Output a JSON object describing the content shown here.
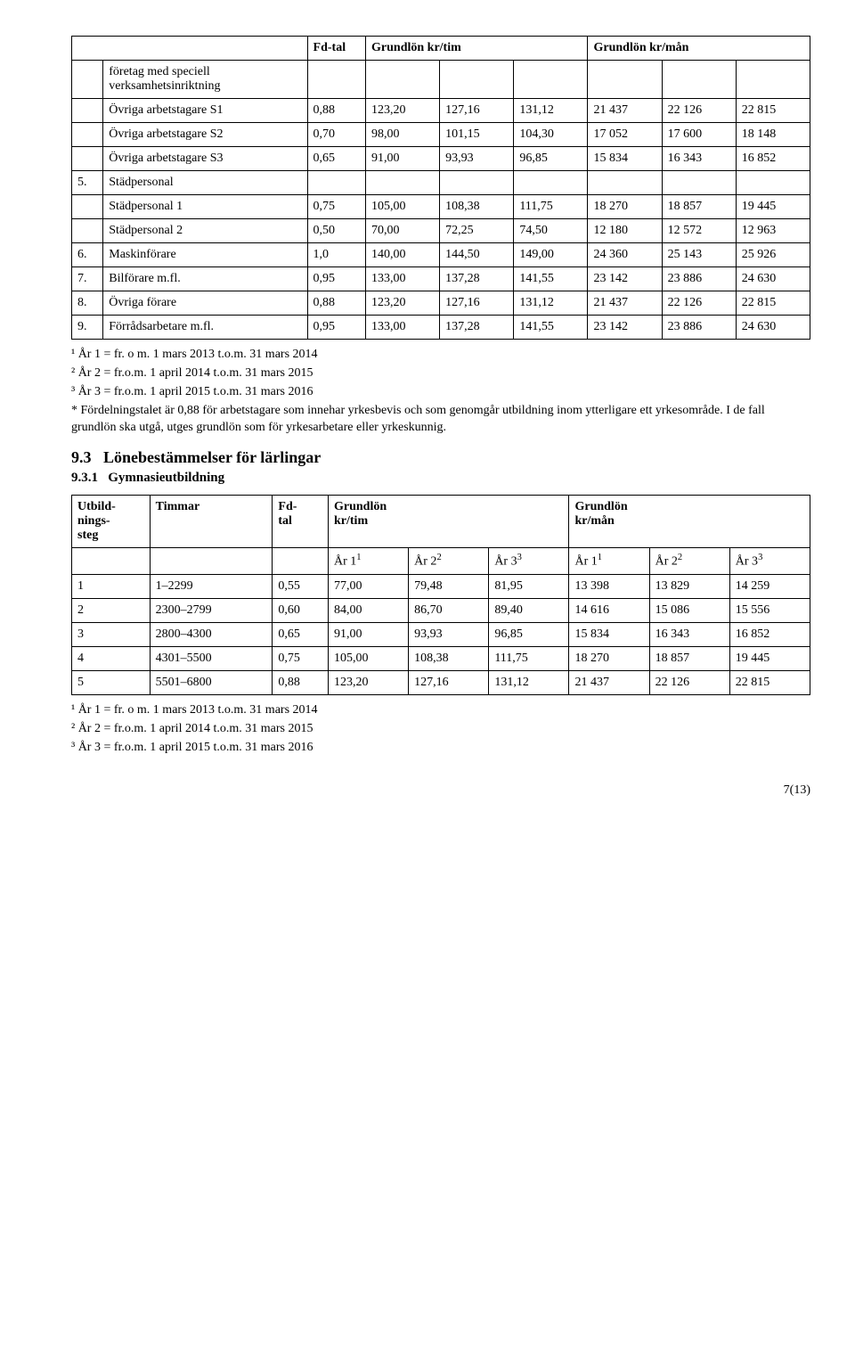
{
  "table1": {
    "headers": {
      "col2": "Fd-tal",
      "col3": "Grundlön kr/tim",
      "col6": "Grundlön kr/mån"
    },
    "groupA": {
      "label": "företag med speciell verksamhetsinriktning",
      "rows": [
        {
          "label": "Övriga arbetstagare S1",
          "c": [
            "0,88",
            "123,20",
            "127,16",
            "131,12",
            "21 437",
            "22 126",
            "22 815"
          ]
        },
        {
          "label": "Övriga arbetstagare S2",
          "c": [
            "0,70",
            "98,00",
            "101,15",
            "104,30",
            "17 052",
            "17 600",
            "18 148"
          ]
        },
        {
          "label": "Övriga arbetstagare S3",
          "c": [
            "0,65",
            "91,00",
            "93,93",
            "96,85",
            "15 834",
            "16 343",
            "16 852"
          ]
        }
      ]
    },
    "group5": {
      "num": "5.",
      "label": "Städpersonal",
      "rows": [
        {
          "label": "Städpersonal 1",
          "c": [
            "0,75",
            "105,00",
            "108,38",
            "111,75",
            "18 270",
            "18 857",
            "19 445"
          ]
        },
        {
          "label": "Städpersonal 2",
          "c": [
            "0,50",
            "70,00",
            "72,25",
            "74,50",
            "12 180",
            "12 572",
            "12 963"
          ]
        }
      ]
    },
    "flat": [
      {
        "num": "6.",
        "label": "Maskinförare",
        "c": [
          "1,0",
          "140,00",
          "144,50",
          "149,00",
          "24 360",
          "25 143",
          "25 926"
        ]
      },
      {
        "num": "7.",
        "label": "Bilförare m.fl.",
        "c": [
          "0,95",
          "133,00",
          "137,28",
          "141,55",
          "23 142",
          "23 886",
          "24 630"
        ]
      },
      {
        "num": "8.",
        "label": "Övriga förare",
        "c": [
          "0,88",
          "123,20",
          "127,16",
          "131,12",
          "21 437",
          "22 126",
          "22 815"
        ]
      },
      {
        "num": "9.",
        "label": "Förrådsarbetare m.fl.",
        "c": [
          "0,95",
          "133,00",
          "137,28",
          "141,55",
          "23 142",
          "23 886",
          "24 630"
        ]
      }
    ]
  },
  "footnotes1": {
    "l1_pre": "¹ År 1 = fr. o m. 1 mars 2013 t.o.m. 31 mars 2014",
    "l2": "² År 2 = fr.o.m. 1 april 2014 t.o.m. 31 mars 2015",
    "l3": "³ År 3 = fr.o.m. 1 april 2015 t.o.m. 31 mars 2016",
    "star": "* Fördelningstalet är 0,88 för arbetstagare som innehar yrkesbevis och som genomgår utbildning inom ytterligare ett yrkesområde. I de fall grundlön ska utgå, utges grundlön som för yrkesarbetare eller yrkeskunnig."
  },
  "sec93": {
    "num": "9.3",
    "title": "Lönebestämmelser för lärlingar"
  },
  "sec931": {
    "num": "9.3.1",
    "title": "Gymnasieutbildning"
  },
  "table2": {
    "headers": {
      "c1": "Utbild-nings-steg",
      "c2": "Timmar",
      "c3": "Fd-tal",
      "c4": "Grundlön kr/tim",
      "c7": "Grundlön kr/mån"
    },
    "subheaders": {
      "a1": "År 1¹",
      "a2": "År 2²",
      "a3": "År 3³",
      "a4": "År 1¹",
      "a5": "År 2²",
      "a6": "År 3³"
    },
    "rows": [
      {
        "c": [
          "1",
          "1–2299",
          "0,55",
          "77,00",
          "79,48",
          "81,95",
          "13 398",
          "13 829",
          "14 259"
        ]
      },
      {
        "c": [
          "2",
          "2300–2799",
          "0,60",
          "84,00",
          "86,70",
          "89,40",
          "14 616",
          "15 086",
          "15 556"
        ]
      },
      {
        "c": [
          "3",
          "2800–4300",
          "0,65",
          "91,00",
          "93,93",
          "96,85",
          "15 834",
          "16 343",
          "16 852"
        ]
      },
      {
        "c": [
          "4",
          "4301–5500",
          "0,75",
          "105,00",
          "108,38",
          "111,75",
          "18 270",
          "18 857",
          "19 445"
        ]
      },
      {
        "c": [
          "5",
          "5501–6800",
          "0,88",
          "123,20",
          "127,16",
          "131,12",
          "21 437",
          "22 126",
          "22 815"
        ]
      }
    ]
  },
  "footnotes2": {
    "l1": "¹ År 1 = fr. o m. 1 mars 2013 t.o.m. 31 mars 2014",
    "l2": "² År 2 = fr.o.m. 1 april 2014 t.o.m. 31 mars 2015",
    "l3": "³ År 3 = fr.o.m. 1 april 2015 t.o.m. 31 mars 2016"
  },
  "page": "7(13)",
  "colwidths_t1": [
    "28px",
    "182px",
    "52px",
    "66px",
    "66px",
    "66px",
    "66px",
    "66px",
    "66px"
  ],
  "colwidths_t2": [
    "70px",
    "110px",
    "50px",
    "72px",
    "72px",
    "72px",
    "72px",
    "72px",
    "72px"
  ]
}
